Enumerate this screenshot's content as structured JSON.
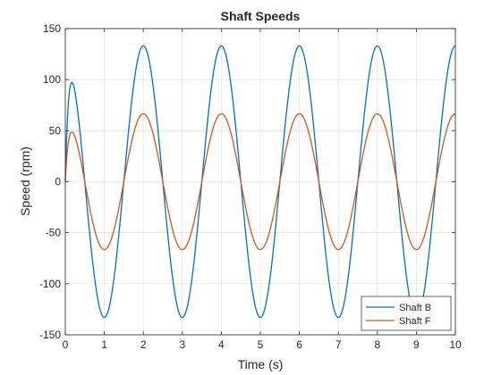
{
  "chart_data": {
    "type": "line",
    "title": "Shaft Speeds",
    "xlabel": "Time (s)",
    "ylabel": "Speed (rpm)",
    "xlim": [
      0,
      10
    ],
    "ylim": [
      -150,
      150
    ],
    "xticks": [
      0,
      1,
      2,
      3,
      4,
      5,
      6,
      7,
      8,
      9,
      10
    ],
    "yticks": [
      -150,
      -100,
      -50,
      0,
      50,
      100,
      150
    ],
    "grid": true,
    "legend_position": "bottom-right",
    "series": [
      {
        "name": "Shaft B",
        "color": "#0072BD",
        "amplitude": 133,
        "frequency_hz": 0.5,
        "phase_rad": -1.5708,
        "transient_amplitude": -133,
        "transient_decay_rate": 12
      },
      {
        "name": "Shaft F",
        "color": "#D95319",
        "amplitude": 66.5,
        "frequency_hz": 0.5,
        "phase_rad": -1.5708,
        "transient_amplitude": -66.5,
        "transient_decay_rate": 12
      }
    ]
  }
}
